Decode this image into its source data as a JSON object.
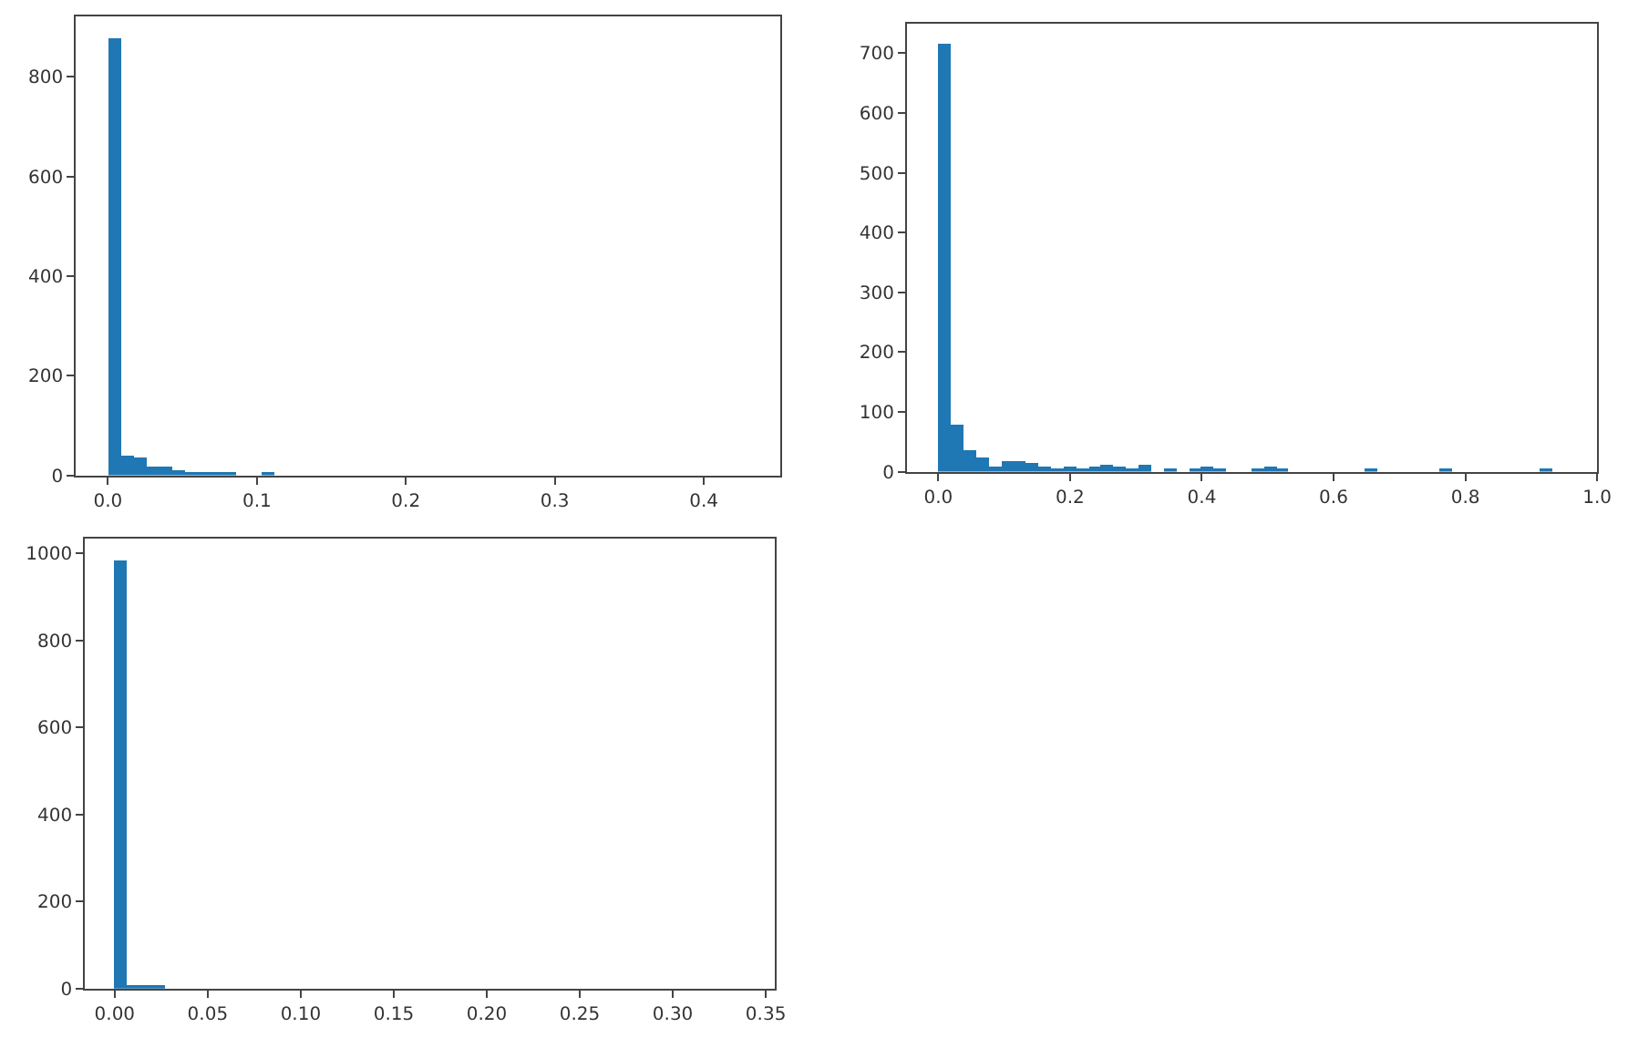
{
  "chart_data": [
    {
      "type": "histogram",
      "color": "#1f77b4",
      "bins": [
        0,
        0.0086,
        0.0172,
        0.0258,
        0.0344,
        0.043,
        0.0516,
        0.0602,
        0.0688,
        0.0774,
        0.086,
        0.0946,
        0.1032,
        0.1118,
        0.1204,
        0.129,
        0.1376,
        0.1462,
        0.1548,
        0.1634,
        0.172,
        0.1806,
        0.1892,
        0.1978,
        0.2064,
        0.215,
        0.2236,
        0.2322,
        0.2408,
        0.2494,
        0.258,
        0.2666,
        0.2752,
        0.2838,
        0.2924,
        0.301,
        0.3096,
        0.3182,
        0.3268,
        0.3354,
        0.344,
        0.3526,
        0.3612,
        0.3698,
        0.3784,
        0.387,
        0.3956,
        0.4042,
        0.4128,
        0.4214,
        0.43
      ],
      "values": [
        878,
        41,
        36,
        17,
        17,
        11,
        6,
        6,
        6,
        6,
        0,
        0,
        6,
        0,
        0,
        0,
        0,
        0,
        0,
        0,
        0,
        0,
        0,
        0,
        0,
        0,
        0,
        0,
        0,
        0,
        0,
        0,
        0,
        0,
        0,
        0,
        0,
        0,
        0,
        0,
        0,
        0,
        0,
        0,
        0,
        0,
        0,
        0,
        0,
        0
      ],
      "xlim": [
        -0.0215,
        0.4515
      ],
      "xticks": [
        {
          "value": 0,
          "label": "0.0"
        },
        {
          "value": 0.1,
          "label": "0.1"
        },
        {
          "value": 0.2,
          "label": "0.2"
        },
        {
          "value": 0.3,
          "label": "0.3"
        },
        {
          "value": 0.4,
          "label": "0.4"
        }
      ],
      "ylim": [
        0,
        922
      ],
      "yticks": [
        0,
        200,
        400,
        600,
        800
      ]
    },
    {
      "type": "histogram",
      "color": "#1f77b4",
      "bins": [
        0,
        0.019,
        0.038,
        0.057,
        0.076,
        0.095,
        0.114,
        0.133,
        0.152,
        0.171,
        0.19,
        0.209,
        0.228,
        0.247,
        0.266,
        0.285,
        0.304,
        0.323,
        0.342,
        0.361,
        0.38,
        0.399,
        0.418,
        0.437,
        0.456,
        0.475,
        0.494,
        0.513,
        0.532,
        0.551,
        0.57,
        0.589,
        0.608,
        0.627,
        0.646,
        0.665,
        0.684,
        0.703,
        0.722,
        0.741,
        0.76,
        0.779,
        0.798,
        0.817,
        0.836,
        0.855,
        0.874,
        0.893,
        0.912,
        0.931,
        0.95
      ],
      "values": [
        715,
        80,
        36,
        24,
        10,
        18,
        18,
        14,
        10,
        5,
        8,
        5,
        8,
        11,
        8,
        5,
        11,
        0,
        5,
        0,
        5,
        8,
        5,
        0,
        0,
        5,
        8,
        5,
        0,
        0,
        0,
        0,
        0,
        0,
        5,
        0,
        0,
        0,
        0,
        0,
        5,
        0,
        0,
        0,
        0,
        0,
        0,
        0,
        5,
        0
      ],
      "xlim": [
        -0.0475,
        1.0
      ],
      "xticks": [
        {
          "value": 0,
          "label": "0.0"
        },
        {
          "value": 0.2,
          "label": "0.2"
        },
        {
          "value": 0.4,
          "label": "0.4"
        },
        {
          "value": 0.6,
          "label": "0.6"
        },
        {
          "value": 0.8,
          "label": "0.8"
        },
        {
          "value": 1,
          "label": "1.0"
        }
      ],
      "ylim": [
        0,
        750
      ],
      "yticks": [
        0,
        100,
        200,
        300,
        400,
        500,
        600,
        700
      ]
    },
    {
      "type": "histogram",
      "color": "#1f77b4",
      "bins": [
        0,
        0.0068,
        0.0136,
        0.0204,
        0.0272,
        0.034,
        0.0408,
        0.0476,
        0.0544,
        0.0612,
        0.068,
        0.0748,
        0.0816,
        0.0884,
        0.0952,
        0.102,
        0.1088,
        0.1156,
        0.1224,
        0.1292,
        0.136,
        0.1428,
        0.1496,
        0.1564,
        0.1632,
        0.17,
        0.1768,
        0.1836,
        0.1904,
        0.1972,
        0.204,
        0.2108,
        0.2176,
        0.2244,
        0.2312,
        0.238,
        0.2448,
        0.2516,
        0.2584,
        0.2652,
        0.272,
        0.2788,
        0.2856,
        0.2924,
        0.2992,
        0.306,
        0.3128,
        0.3196,
        0.3264,
        0.3332,
        0.34
      ],
      "values": [
        986,
        10,
        7,
        7,
        0,
        0,
        0,
        0,
        0,
        0,
        0,
        0,
        0,
        0,
        0,
        0,
        0,
        0,
        0,
        0,
        0,
        0,
        0,
        0,
        0,
        0,
        0,
        0,
        0,
        0,
        0,
        0,
        0,
        0,
        0,
        0,
        0,
        0,
        0,
        0,
        0,
        0,
        0,
        0,
        0,
        0,
        0,
        0,
        0,
        0
      ],
      "xlim": [
        -0.016,
        0.355
      ],
      "xticks": [
        {
          "value": 0,
          "label": "0.00"
        },
        {
          "value": 0.05,
          "label": "0.05"
        },
        {
          "value": 0.1,
          "label": "0.10"
        },
        {
          "value": 0.15,
          "label": "0.15"
        },
        {
          "value": 0.2,
          "label": "0.20"
        },
        {
          "value": 0.25,
          "label": "0.25"
        },
        {
          "value": 0.3,
          "label": "0.30"
        },
        {
          "value": 0.35,
          "label": "0.35"
        }
      ],
      "ylim": [
        0,
        1035
      ],
      "yticks": [
        0,
        200,
        400,
        600,
        800,
        1000
      ]
    }
  ]
}
